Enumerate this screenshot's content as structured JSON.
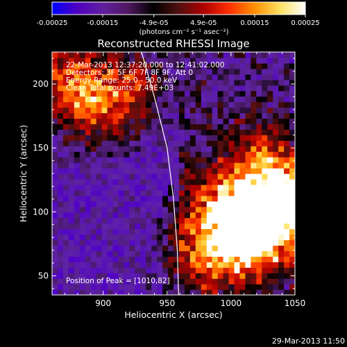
{
  "chart_data": {
    "type": "heatmap",
    "title": "Reconstructed RHESSI Image",
    "xlabel": "Heliocentric X (arcsec)",
    "ylabel": "Heliocentric Y (arcsec)",
    "xlim": [
      860,
      1050
    ],
    "ylim": [
      35,
      225
    ],
    "xticks": [
      900,
      950,
      1000,
      1050
    ],
    "yticks": [
      50,
      100,
      150,
      200
    ],
    "colorbar": {
      "range": [
        -0.00025,
        0.00025
      ],
      "tick_labels": [
        "-0.00025",
        "-0.00015",
        "-4.9e-05",
        "4.9e-05",
        "0.00015",
        "0.00025"
      ],
      "unit_label": "(photons cm⁻² s⁻¹ asec⁻²)",
      "colors": [
        "#0000ff",
        "#5000c0",
        "#6020a0",
        "#501860",
        "#000000",
        "#501010",
        "#b00000",
        "#ff3000",
        "#ff9000",
        "#ffe060",
        "#ffffff"
      ]
    },
    "annotations": {
      "time": "22-Mar-2013 12:37:20.000 to 12:41:02.000",
      "detectors": "Detectors: 3F 5F 6F 7F 8F 9F, Att 0",
      "energy": "Energy Range: 25.0 - 50.0 keV",
      "clean": "Clean     Total counts: 7.49E+03",
      "peak": "Position of Peak = [1010,82]"
    },
    "limb_curve": [
      [
        930,
        225
      ],
      [
        940,
        190
      ],
      [
        950,
        150
      ],
      [
        955,
        110
      ],
      [
        958,
        70
      ],
      [
        959,
        35
      ]
    ],
    "peak_position": [
      1010,
      82
    ],
    "hot_regions": [
      {
        "x": 870,
        "y": 205,
        "value": 0.00018
      },
      {
        "x": 895,
        "y": 180,
        "value": 0.00016
      },
      {
        "x": 925,
        "y": 200,
        "value": 0.00014
      },
      {
        "x": 1010,
        "y": 82,
        "value": 0.00025
      },
      {
        "x": 1040,
        "y": 115,
        "value": 0.00022
      },
      {
        "x": 1030,
        "y": 90,
        "value": 0.0002
      },
      {
        "x": 990,
        "y": 100,
        "value": 0.00017
      },
      {
        "x": 975,
        "y": 60,
        "value": 0.00012
      },
      {
        "x": 1020,
        "y": 140,
        "value": 0.00013
      }
    ]
  },
  "footer_date": "29-Mar-2013 11:50"
}
